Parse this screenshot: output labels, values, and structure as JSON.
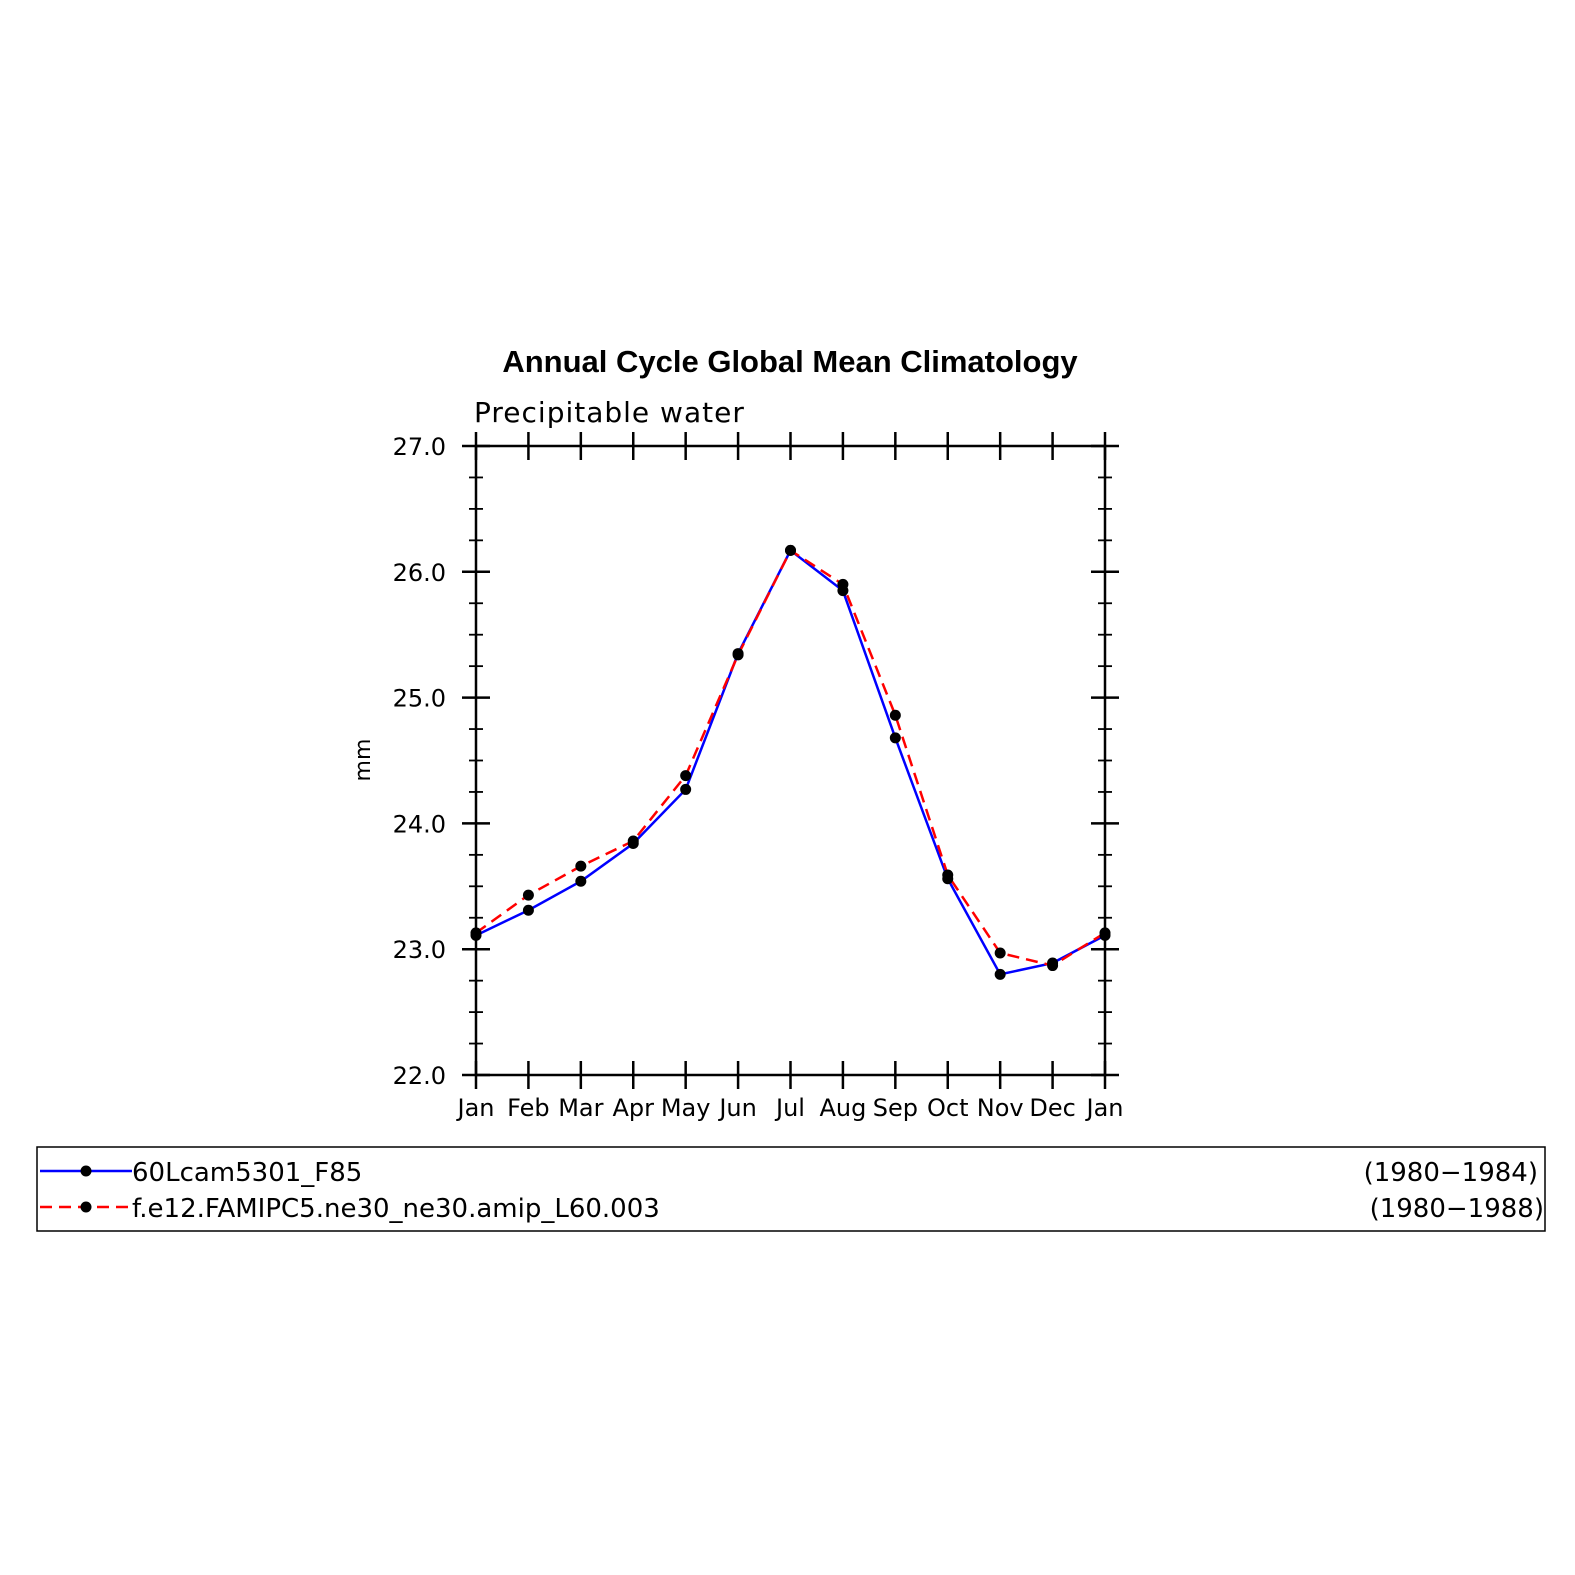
{
  "chart_data": {
    "type": "line",
    "title": "Annual Cycle Global Mean Climatology",
    "subtitle": "Precipitable water",
    "ylabel": "mm",
    "xlabel": "",
    "categories": [
      "Jan",
      "Feb",
      "Mar",
      "Apr",
      "May",
      "Jun",
      "Jul",
      "Aug",
      "Sep",
      "Oct",
      "Nov",
      "Dec",
      "Jan"
    ],
    "ylim": [
      22.0,
      27.0
    ],
    "yticks": [
      "22.0",
      "23.0",
      "24.0",
      "25.0",
      "26.0",
      "27.0"
    ],
    "grid": false,
    "legend_position": "bottom",
    "series": [
      {
        "name": "60Lcam5301_F85",
        "period": "(1980−1984)",
        "color": "#0000ff",
        "dash": "solid",
        "values": [
          23.11,
          23.31,
          23.54,
          23.84,
          24.27,
          25.35,
          26.17,
          25.85,
          24.68,
          23.56,
          22.8,
          22.89,
          23.11
        ]
      },
      {
        "name": "f.e12.FAMIPC5.ne30_ne30.amip_L60.003",
        "period": "(1980−1988)",
        "color": "#ff0000",
        "dash": "dashed",
        "values": [
          23.13,
          23.43,
          23.66,
          23.86,
          24.38,
          25.34,
          26.17,
          25.9,
          24.86,
          23.59,
          22.97,
          22.87,
          23.13
        ]
      }
    ]
  }
}
